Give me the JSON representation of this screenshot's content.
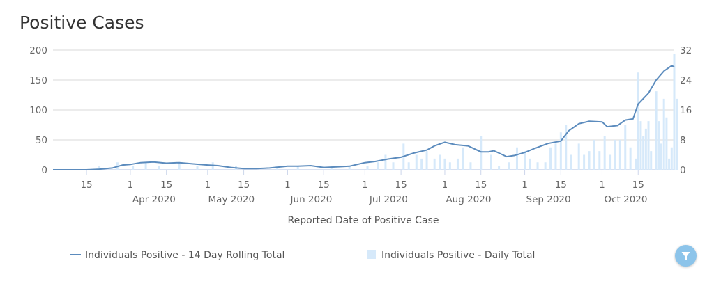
{
  "title": "Positive Cases",
  "chart_data": {
    "type": "line+bar",
    "title": "Positive Cases",
    "xlabel": "Reported Date of Positive Case",
    "ylabel_left": "",
    "ylabel_right": "",
    "ylim_left": [
      0,
      200
    ],
    "ylim_right": [
      0,
      32
    ],
    "yticks_left": [
      "0",
      "50",
      "100",
      "150",
      "200"
    ],
    "yticks_right": [
      "0",
      "8",
      "16",
      "24",
      "32"
    ],
    "xlim": [
      "2020-03-02",
      "2020-10-29"
    ],
    "xticks": [
      {
        "date": "2020-03-15",
        "label": "15",
        "month": ""
      },
      {
        "date": "2020-04-01",
        "label": "1",
        "month": "Apr 2020"
      },
      {
        "date": "2020-04-15",
        "label": "15",
        "month": ""
      },
      {
        "date": "2020-05-01",
        "label": "1",
        "month": "May 2020"
      },
      {
        "date": "2020-05-15",
        "label": "15",
        "month": ""
      },
      {
        "date": "2020-06-01",
        "label": "1",
        "month": "Jun 2020"
      },
      {
        "date": "2020-06-15",
        "label": "15",
        "month": ""
      },
      {
        "date": "2020-07-01",
        "label": "1",
        "month": "Jul 2020"
      },
      {
        "date": "2020-07-15",
        "label": "15",
        "month": ""
      },
      {
        "date": "2020-08-01",
        "label": "1",
        "month": "Aug 2020"
      },
      {
        "date": "2020-08-15",
        "label": "15",
        "month": ""
      },
      {
        "date": "2020-09-01",
        "label": "1",
        "month": "Sep 2020"
      },
      {
        "date": "2020-09-15",
        "label": "15",
        "month": ""
      },
      {
        "date": "2020-10-01",
        "label": "1",
        "month": "Oct 2020"
      },
      {
        "date": "2020-10-15",
        "label": "15",
        "month": ""
      }
    ],
    "grid": true,
    "legend_position": "bottom",
    "series": [
      {
        "name": "Individuals Positive - 14 Day Rolling Total",
        "type": "line",
        "axis": "left",
        "color": "#5b8bbd",
        "points": [
          [
            "2020-03-02",
            0
          ],
          [
            "2020-03-15",
            0
          ],
          [
            "2020-03-20",
            1
          ],
          [
            "2020-03-25",
            3
          ],
          [
            "2020-03-29",
            8
          ],
          [
            "2020-04-01",
            9
          ],
          [
            "2020-04-05",
            12
          ],
          [
            "2020-04-10",
            13
          ],
          [
            "2020-04-15",
            11
          ],
          [
            "2020-04-20",
            12
          ],
          [
            "2020-04-25",
            10
          ],
          [
            "2020-05-01",
            8
          ],
          [
            "2020-05-05",
            7
          ],
          [
            "2020-05-10",
            4
          ],
          [
            "2020-05-15",
            2
          ],
          [
            "2020-05-20",
            2
          ],
          [
            "2020-05-25",
            3
          ],
          [
            "2020-06-01",
            6
          ],
          [
            "2020-06-05",
            6
          ],
          [
            "2020-06-10",
            7
          ],
          [
            "2020-06-15",
            4
          ],
          [
            "2020-06-20",
            5
          ],
          [
            "2020-06-25",
            6
          ],
          [
            "2020-07-01",
            12
          ],
          [
            "2020-07-05",
            14
          ],
          [
            "2020-07-10",
            18
          ],
          [
            "2020-07-15",
            21
          ],
          [
            "2020-07-20",
            28
          ],
          [
            "2020-07-25",
            33
          ],
          [
            "2020-07-28",
            40
          ],
          [
            "2020-08-01",
            46
          ],
          [
            "2020-08-05",
            42
          ],
          [
            "2020-08-10",
            40
          ],
          [
            "2020-08-15",
            30
          ],
          [
            "2020-08-18",
            30
          ],
          [
            "2020-08-20",
            32
          ],
          [
            "2020-08-25",
            22
          ],
          [
            "2020-08-28",
            24
          ],
          [
            "2020-09-01",
            29
          ],
          [
            "2020-09-05",
            36
          ],
          [
            "2020-09-10",
            44
          ],
          [
            "2020-09-15",
            48
          ],
          [
            "2020-09-18",
            65
          ],
          [
            "2020-09-22",
            77
          ],
          [
            "2020-09-26",
            81
          ],
          [
            "2020-10-01",
            80
          ],
          [
            "2020-10-03",
            72
          ],
          [
            "2020-10-07",
            74
          ],
          [
            "2020-10-10",
            83
          ],
          [
            "2020-10-13",
            85
          ],
          [
            "2020-10-15",
            110
          ],
          [
            "2020-10-19",
            128
          ],
          [
            "2020-10-22",
            150
          ],
          [
            "2020-10-25",
            165
          ],
          [
            "2020-10-28",
            174
          ],
          [
            "2020-10-29",
            172
          ]
        ]
      },
      {
        "name": "Individuals Positive - Daily Total",
        "type": "bar",
        "axis": "right",
        "color": "#d6e9fa",
        "points": [
          [
            "2020-03-20",
            1
          ],
          [
            "2020-03-27",
            2
          ],
          [
            "2020-04-02",
            1
          ],
          [
            "2020-04-07",
            2
          ],
          [
            "2020-04-12",
            1
          ],
          [
            "2020-04-20",
            2
          ],
          [
            "2020-04-27",
            1
          ],
          [
            "2020-05-03",
            2
          ],
          [
            "2020-05-12",
            1
          ],
          [
            "2020-05-28",
            1
          ],
          [
            "2020-06-05",
            1
          ],
          [
            "2020-06-18",
            1
          ],
          [
            "2020-06-25",
            1
          ],
          [
            "2020-07-02",
            1
          ],
          [
            "2020-07-06",
            2
          ],
          [
            "2020-07-09",
            4
          ],
          [
            "2020-07-12",
            2
          ],
          [
            "2020-07-16",
            7
          ],
          [
            "2020-07-18",
            2
          ],
          [
            "2020-07-21",
            4
          ],
          [
            "2020-07-23",
            3
          ],
          [
            "2020-07-25",
            5
          ],
          [
            "2020-07-28",
            3
          ],
          [
            "2020-07-30",
            4
          ],
          [
            "2020-08-01",
            3
          ],
          [
            "2020-08-03",
            2
          ],
          [
            "2020-08-06",
            3
          ],
          [
            "2020-08-08",
            6
          ],
          [
            "2020-08-11",
            2
          ],
          [
            "2020-08-15",
            9
          ],
          [
            "2020-08-19",
            4
          ],
          [
            "2020-08-22",
            1
          ],
          [
            "2020-08-26",
            2
          ],
          [
            "2020-08-29",
            6
          ],
          [
            "2020-09-01",
            5
          ],
          [
            "2020-09-03",
            3
          ],
          [
            "2020-09-06",
            2
          ],
          [
            "2020-09-09",
            2
          ],
          [
            "2020-09-11",
            6
          ],
          [
            "2020-09-13",
            7
          ],
          [
            "2020-09-15",
            10
          ],
          [
            "2020-09-17",
            12
          ],
          [
            "2020-09-19",
            4
          ],
          [
            "2020-09-22",
            7
          ],
          [
            "2020-09-24",
            4
          ],
          [
            "2020-09-26",
            5
          ],
          [
            "2020-09-28",
            8
          ],
          [
            "2020-09-30",
            5
          ],
          [
            "2020-10-02",
            9
          ],
          [
            "2020-10-04",
            4
          ],
          [
            "2020-10-06",
            8
          ],
          [
            "2020-10-08",
            8
          ],
          [
            "2020-10-10",
            12
          ],
          [
            "2020-10-12",
            6
          ],
          [
            "2020-10-14",
            3
          ],
          [
            "2020-10-15",
            26
          ],
          [
            "2020-10-16",
            13
          ],
          [
            "2020-10-17",
            9
          ],
          [
            "2020-10-18",
            11
          ],
          [
            "2020-10-19",
            13
          ],
          [
            "2020-10-20",
            5
          ],
          [
            "2020-10-22",
            21
          ],
          [
            "2020-10-23",
            13
          ],
          [
            "2020-10-24",
            7
          ],
          [
            "2020-10-25",
            19
          ],
          [
            "2020-10-26",
            14
          ],
          [
            "2020-10-27",
            3
          ],
          [
            "2020-10-28",
            6
          ],
          [
            "2020-10-29",
            31
          ],
          [
            "2020-10-30",
            19
          ]
        ]
      }
    ]
  },
  "legend": {
    "line_label": "Individuals Positive - 14 Day Rolling Total",
    "bar_label": "Individuals Positive - Daily Total"
  },
  "filter_button": {
    "icon": "filter-icon"
  }
}
